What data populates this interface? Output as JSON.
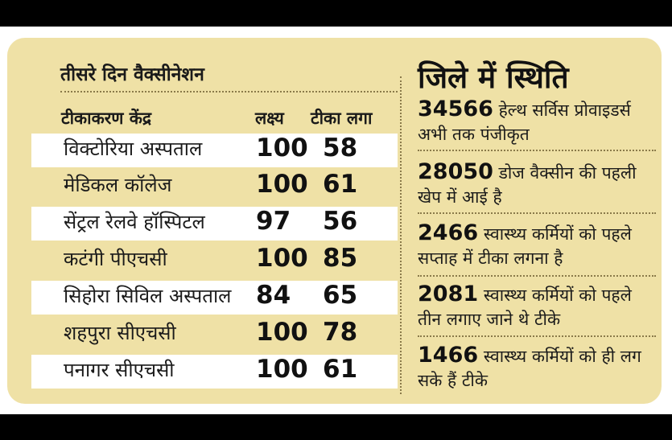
{
  "left": {
    "title": "तीसरे दिन वैक्सीनेशन",
    "headers": {
      "center": "टीकाकरण केंद्र",
      "target": "लक्ष्य",
      "given": "टीका लगा"
    },
    "rows": [
      {
        "name": "विक्टोरिया अस्पताल",
        "target": "100",
        "given": "58"
      },
      {
        "name": "मेडिकल कॉलेज",
        "target": "100",
        "given": "61"
      },
      {
        "name": "सेंट्रल रेलवे हॉस्पिटल",
        "target": "97",
        "given": "56"
      },
      {
        "name": "कटंगी पीएचसी",
        "target": "100",
        "given": "85"
      },
      {
        "name": "सिहोरा सिविल अस्पताल",
        "target": "84",
        "given": "65"
      },
      {
        "name": "शहपुरा सीएचसी",
        "target": "100",
        "given": "78"
      },
      {
        "name": "पनागर सीएचसी",
        "target": "100",
        "given": "61"
      }
    ]
  },
  "right": {
    "title": "जिले में स्थिति",
    "stats": [
      {
        "number": "34566",
        "text": "हेल्थ सर्विस प्रोवाइडर्स अभी तक पंजीकृत"
      },
      {
        "number": "28050",
        "text": "डोज वैक्सीन की पहली खेप में आई है"
      },
      {
        "number": "2466",
        "text": "स्वास्थ्य कर्मियों को पहले सप्ताह में टीका लगना है"
      },
      {
        "number": "2081",
        "text": "स्वास्थ्य कर्मियों को पहले तीन लगाए जाने थे टीके"
      },
      {
        "number": "1466",
        "text": "स्वास्थ्य कर्मियों को ही लग सके हैं टीके"
      }
    ]
  },
  "colors": {
    "card_bg": "#efe1a6",
    "row_highlight": "#ffffff",
    "text": "#1a1a1a"
  }
}
